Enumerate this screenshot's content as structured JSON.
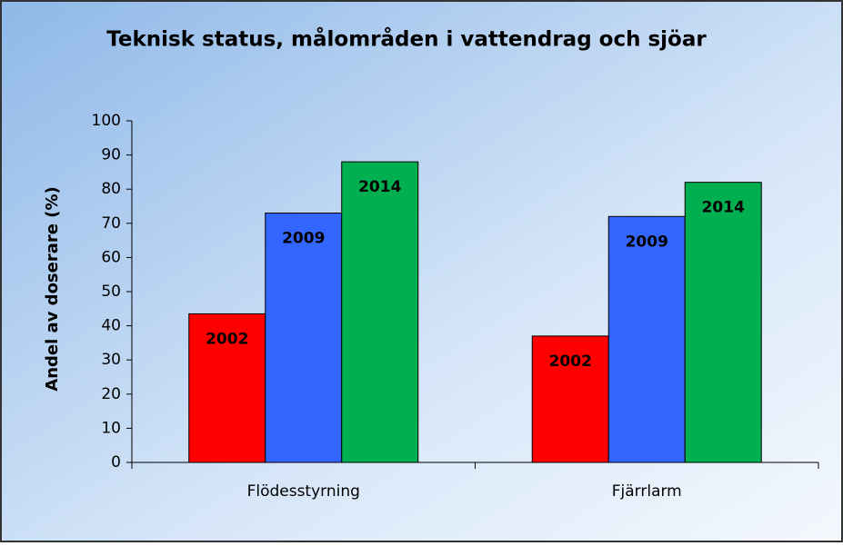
{
  "chart_data": {
    "type": "bar",
    "title": "Teknisk status, målområden i vattendrag och sjöar",
    "ylabel": "Andel av doserare (%)",
    "categories": [
      "Flödesstyrning",
      "Fjärrlarm"
    ],
    "series": [
      {
        "name": "2002",
        "color": "#ff0000",
        "values": [
          43.5,
          37
        ]
      },
      {
        "name": "2009",
        "color": "#3366ff",
        "values": [
          73,
          72
        ]
      },
      {
        "name": "2014",
        "color": "#00b050",
        "values": [
          88,
          82
        ]
      }
    ],
    "ylim": [
      0,
      100
    ],
    "yticks": [
      0,
      10,
      20,
      30,
      40,
      50,
      60,
      70,
      80,
      90,
      100
    ],
    "grid": false
  }
}
